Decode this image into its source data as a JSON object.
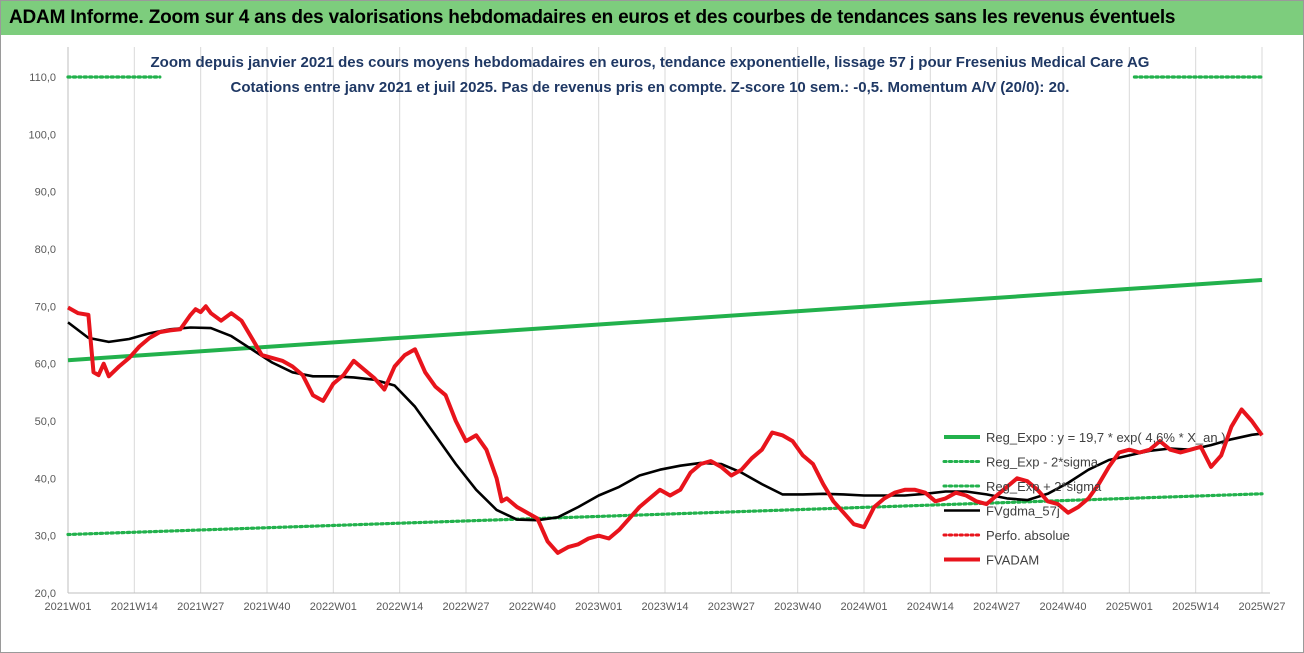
{
  "header": {
    "title": "ADAM Informe. Zoom sur 4 ans des valorisations hebdomadaires en euros et des courbes de tendances sans les revenus éventuels"
  },
  "chart_data": {
    "type": "line",
    "title": "Zoom depuis janvier 2021 des cours moyens hebdomadaires en euros, tendance exponentielle, lissage 57 j pour Fresenius Medical Care AG",
    "subtitle": "Cotations entre janv 2021 et juil 2025. Pas de revenus pris en compte. Z-score 10 sem.: -0,5. Momentum A/V (20/0): 20.",
    "xlabel": "",
    "ylabel": "",
    "ylim": [
      20,
      110
    ],
    "yticks": [
      "20,0",
      "30,0",
      "40,0",
      "50,0",
      "60,0",
      "70,0",
      "80,0",
      "90,0",
      "100,0",
      "110,0"
    ],
    "xticks": [
      "2021W01",
      "2021W14",
      "2021W27",
      "2021W40",
      "2022W01",
      "2022W14",
      "2022W27",
      "2022W40",
      "2023W01",
      "2023W14",
      "2023W27",
      "2023W40",
      "2024W01",
      "2024W14",
      "2024W27",
      "2024W40",
      "2025W01",
      "2025W14",
      "2025W27"
    ],
    "x_range_weeks": [
      0,
      234
    ],
    "grid": "vertical",
    "legend_position": "bottom-right",
    "series": [
      {
        "name": "Reg_Expo : y = 19,7 * exp( 4,6% * X_an )",
        "color": "#22b14c",
        "style": "solid",
        "x": [
          0,
          234
        ],
        "y": [
          60.6,
          74.6
        ]
      },
      {
        "name": "Reg_Exp - 2*sigma",
        "color": "#22b14c",
        "style": "dotted",
        "x": [
          0,
          234
        ],
        "y": [
          30.2,
          37.3
        ]
      },
      {
        "name": "Reg_Exp + 2*sigma",
        "color": "#22b14c",
        "style": "dotted",
        "x": [
          0,
          234
        ],
        "y": [
          110.0,
          110.0
        ],
        "segments": [
          [
            0,
            18
          ],
          [
            209,
            234
          ]
        ]
      },
      {
        "name": "FVgdma_57j",
        "color": "#000000",
        "style": "solid",
        "x": [
          0,
          4,
          8,
          12,
          16,
          20,
          24,
          28,
          32,
          36,
          40,
          44,
          48,
          52,
          56,
          60,
          64,
          68,
          72,
          76,
          80,
          84,
          88,
          92,
          96,
          100,
          104,
          108,
          112,
          116,
          120,
          124,
          128,
          132,
          136,
          140,
          144,
          148,
          152,
          156,
          160,
          164,
          168,
          172,
          176,
          180,
          184,
          188,
          192,
          196,
          200,
          204,
          208,
          212,
          216,
          220,
          224,
          228,
          232,
          234
        ],
        "y": [
          67.2,
          64.5,
          63.8,
          64.3,
          65.3,
          66.0,
          66.3,
          66.2,
          64.8,
          62.5,
          60.2,
          58.5,
          57.8,
          57.8,
          57.6,
          57.2,
          56.2,
          52.5,
          47.5,
          42.5,
          38.0,
          34.5,
          32.8,
          32.7,
          33.2,
          35.0,
          37.0,
          38.5,
          40.5,
          41.5,
          42.2,
          42.7,
          42.5,
          41.0,
          39.0,
          37.2,
          37.2,
          37.3,
          37.2,
          37.0,
          37.0,
          37.0,
          37.3,
          37.7,
          37.7,
          37.2,
          36.5,
          36.2,
          37.3,
          39.2,
          41.5,
          43.2,
          44.0,
          44.8,
          45.2,
          45.0,
          45.8,
          46.8,
          47.6,
          47.8
        ]
      },
      {
        "name": "Perfo. absolue",
        "color": "#e8141c",
        "style": "dotted",
        "x": [],
        "y": []
      },
      {
        "name": "FVADAM",
        "color": "#e8141c",
        "style": "solid",
        "x": [
          0,
          2,
          4,
          5,
          6,
          7,
          8,
          10,
          12,
          14,
          16,
          18,
          20,
          22,
          24,
          25,
          26,
          27,
          28,
          30,
          32,
          34,
          36,
          38,
          40,
          42,
          44,
          46,
          48,
          50,
          52,
          54,
          56,
          58,
          60,
          62,
          64,
          66,
          68,
          70,
          72,
          74,
          76,
          78,
          80,
          82,
          84,
          85,
          86,
          88,
          90,
          92,
          94,
          96,
          98,
          100,
          102,
          104,
          106,
          108,
          110,
          112,
          114,
          116,
          118,
          120,
          122,
          124,
          126,
          128,
          130,
          132,
          134,
          136,
          138,
          140,
          142,
          144,
          146,
          148,
          150,
          152,
          154,
          156,
          158,
          160,
          162,
          164,
          166,
          168,
          170,
          172,
          174,
          176,
          178,
          180,
          182,
          184,
          186,
          188,
          190,
          192,
          194,
          196,
          198,
          200,
          202,
          204,
          206,
          208,
          210,
          212,
          214,
          216,
          218,
          220,
          222,
          224,
          226,
          228,
          230,
          232,
          234
        ],
        "y": [
          69.8,
          68.8,
          68.5,
          58.5,
          58.0,
          60.0,
          57.8,
          59.5,
          61.0,
          63.0,
          64.5,
          65.5,
          65.8,
          66.0,
          68.5,
          69.5,
          69.0,
          70.0,
          68.8,
          67.5,
          68.8,
          67.5,
          64.5,
          61.5,
          61.0,
          60.5,
          59.5,
          58.0,
          54.5,
          53.5,
          56.5,
          58.0,
          60.5,
          59.0,
          57.5,
          55.5,
          59.5,
          61.5,
          62.5,
          58.5,
          56.0,
          54.5,
          50.0,
          46.5,
          47.5,
          45.0,
          40.0,
          36.0,
          36.5,
          35.0,
          34.0,
          33.0,
          29.0,
          27.0,
          28.0,
          28.5,
          29.5,
          30.0,
          29.5,
          31.0,
          33.0,
          35.0,
          36.5,
          38.0,
          37.0,
          38.0,
          41.0,
          42.5,
          43.0,
          42.0,
          40.5,
          41.5,
          43.5,
          45.0,
          48.0,
          47.5,
          46.5,
          44.0,
          42.5,
          39.0,
          36.0,
          34.0,
          32.0,
          31.5,
          35.0,
          36.5,
          37.5,
          38.0,
          38.0,
          37.5,
          36.0,
          36.5,
          37.5,
          37.0,
          36.0,
          35.5,
          37.0,
          38.5,
          40.0,
          39.5,
          38.0,
          36.0,
          35.5,
          34.0,
          35.0,
          36.5,
          39.0,
          42.0,
          44.5,
          45.0,
          44.5,
          45.0,
          46.5,
          45.0,
          44.5,
          45.0,
          45.5,
          42.0,
          44.0,
          49.0,
          52.0,
          50.0,
          47.5
        ]
      }
    ]
  }
}
